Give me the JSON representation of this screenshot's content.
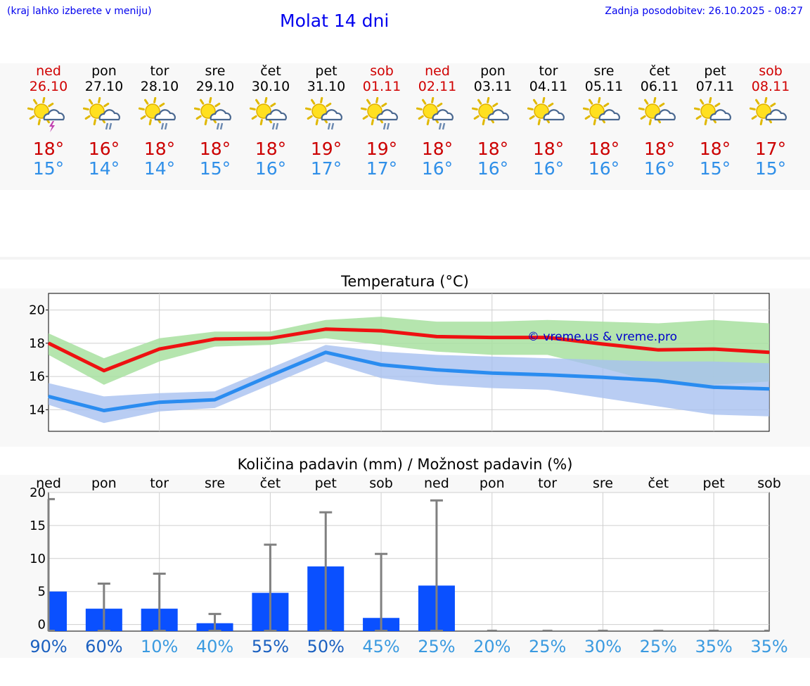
{
  "header": {
    "location_hint": "(kraj lahko izberete v meniju)",
    "title": "Molat 14 dni",
    "last_update": "Zadnja posodobitev: 26.10.2025 - 08:27"
  },
  "forecast": [
    {
      "day": "ned",
      "date": "26.10",
      "weekend": true,
      "icon": "sun-cloud-thunder-icon",
      "max": "18°",
      "min": "15°"
    },
    {
      "day": "pon",
      "date": "27.10",
      "weekend": false,
      "icon": "sun-cloud-rain-icon",
      "max": "16°",
      "min": "14°"
    },
    {
      "day": "tor",
      "date": "28.10",
      "weekend": false,
      "icon": "sun-cloud-rain-icon",
      "max": "18°",
      "min": "14°"
    },
    {
      "day": "sre",
      "date": "29.10",
      "weekend": false,
      "icon": "sun-cloud-rain-icon",
      "max": "18°",
      "min": "15°"
    },
    {
      "day": "čet",
      "date": "30.10",
      "weekend": false,
      "icon": "sun-cloud-rain-icon",
      "max": "18°",
      "min": "16°"
    },
    {
      "day": "pet",
      "date": "31.10",
      "weekend": false,
      "icon": "sun-cloud-rain-icon",
      "max": "19°",
      "min": "17°"
    },
    {
      "day": "sob",
      "date": "01.11",
      "weekend": true,
      "icon": "sun-cloud-rain-icon",
      "max": "19°",
      "min": "17°"
    },
    {
      "day": "ned",
      "date": "02.11",
      "weekend": true,
      "icon": "sun-cloud-rain-icon",
      "max": "18°",
      "min": "16°"
    },
    {
      "day": "pon",
      "date": "03.11",
      "weekend": false,
      "icon": "sun-cloud-icon",
      "max": "18°",
      "min": "16°"
    },
    {
      "day": "tor",
      "date": "04.11",
      "weekend": false,
      "icon": "sun-cloud-icon",
      "max": "18°",
      "min": "16°"
    },
    {
      "day": "sre",
      "date": "05.11",
      "weekend": false,
      "icon": "sun-cloud-icon",
      "max": "18°",
      "min": "16°"
    },
    {
      "day": "čet",
      "date": "06.11",
      "weekend": false,
      "icon": "sun-cloud-icon",
      "max": "18°",
      "min": "16°"
    },
    {
      "day": "pet",
      "date": "07.11",
      "weekend": false,
      "icon": "sun-cloud-icon",
      "max": "18°",
      "min": "15°"
    },
    {
      "day": "sob",
      "date": "08.11",
      "weekend": true,
      "icon": "sun-cloud-icon",
      "max": "17°",
      "min": "15°"
    }
  ],
  "colors": {
    "max_line": "#ee1111",
    "max_band": "#a8e0a0",
    "min_line": "#2a8cf0",
    "min_band": "#a8c0f0",
    "bar": "#0a50ff",
    "error_bar": "#808080",
    "watermark": "#0000cc",
    "pct_dark": "#1a60c0",
    "pct_light": "#3a9ae0"
  },
  "chart_data": [
    {
      "type": "line",
      "title": "Temperatura (°C)",
      "ylim": [
        12.7,
        21.0
      ],
      "yticks": [
        14,
        16,
        18,
        20
      ],
      "watermark": "© vreme.us & vreme.pro",
      "x": [
        0,
        1,
        2,
        3,
        4,
        5,
        6,
        7,
        8,
        9,
        10,
        11,
        12,
        13
      ],
      "series": [
        {
          "name": "max",
          "values": [
            18.0,
            16.35,
            17.65,
            18.25,
            18.3,
            18.85,
            18.75,
            18.4,
            18.35,
            18.35,
            17.95,
            17.6,
            17.65,
            17.45
          ],
          "band_low": [
            17.3,
            15.5,
            16.9,
            17.8,
            17.9,
            18.3,
            17.9,
            17.5,
            17.3,
            17.3,
            16.5,
            15.6,
            15.5,
            15.7
          ],
          "band_high": [
            18.6,
            17.1,
            18.3,
            18.7,
            18.7,
            19.4,
            19.6,
            19.3,
            19.3,
            19.4,
            19.3,
            19.2,
            19.4,
            19.2
          ]
        },
        {
          "name": "min",
          "values": [
            14.8,
            13.95,
            14.45,
            14.6,
            16.05,
            17.45,
            16.7,
            16.4,
            16.2,
            16.1,
            15.95,
            15.75,
            15.35,
            15.25
          ],
          "band_low": [
            14.3,
            13.2,
            13.9,
            14.1,
            15.5,
            16.9,
            15.9,
            15.5,
            15.3,
            15.2,
            14.7,
            14.2,
            13.7,
            13.6
          ],
          "band_high": [
            15.6,
            14.8,
            15.0,
            15.1,
            16.5,
            17.9,
            17.5,
            17.3,
            17.2,
            17.1,
            17.0,
            16.9,
            16.9,
            16.8
          ]
        }
      ]
    },
    {
      "type": "bar",
      "title": "Količina padavin (mm) / Možnost padavin (%)",
      "ylim": [
        -1,
        20
      ],
      "yticks": [
        0,
        5,
        10,
        15,
        20
      ],
      "categories": [
        "ned",
        "pon",
        "tor",
        "sre",
        "čet",
        "pet",
        "sob",
        "ned",
        "pon",
        "tor",
        "sre",
        "čet",
        "pet",
        "sob"
      ],
      "values": [
        5.0,
        2.4,
        2.4,
        0.2,
        4.8,
        8.8,
        1.0,
        5.9,
        0,
        0,
        0,
        0,
        0,
        0
      ],
      "error_high": [
        19.0,
        6.2,
        7.7,
        1.6,
        12.1,
        17.0,
        10.7,
        18.8,
        0,
        0,
        0,
        0,
        0,
        0
      ],
      "probability": [
        "90%",
        "60%",
        "10%",
        "40%",
        "55%",
        "50%",
        "45%",
        "25%",
        "20%",
        "25%",
        "30%",
        "25%",
        "35%",
        "35%"
      ],
      "prob_level": [
        "dark",
        "dark",
        "light",
        "light",
        "dark",
        "dark",
        "light",
        "light",
        "light",
        "light",
        "light",
        "light",
        "light",
        "light"
      ]
    }
  ]
}
